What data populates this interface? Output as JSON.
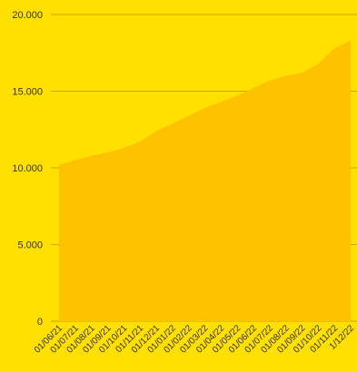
{
  "chart_data": {
    "type": "area",
    "title": "",
    "xlabel": "",
    "ylabel": "",
    "categories": [
      "01/06/21",
      "01/07/21",
      "01/08/21",
      "01/09/21",
      "01/10/21",
      "01/11/21",
      "01/12/21",
      "01/01/22",
      "01/02/22",
      "01/03/22",
      "01/04/22",
      "01/05/22",
      "01/06/22",
      "01/07/22",
      "01/08/22",
      "01/09/22",
      "01/10/22",
      "01/11/22",
      "1/12/22"
    ],
    "values": [
      10200,
      10500,
      10800,
      11000,
      11300,
      11700,
      12400,
      12900,
      13400,
      13900,
      14300,
      14700,
      15200,
      15700,
      16000,
      16200,
      16800,
      17800,
      18300
    ],
    "ylim": [
      0,
      20000
    ],
    "yticks": [
      0,
      5000,
      10000,
      15000,
      20000
    ],
    "ytick_labels": [
      "0",
      "5.000",
      "10.000",
      "15.000",
      "20.000"
    ],
    "grid": true,
    "colors": {
      "background": "#FFE000",
      "area": "#FFC200",
      "grid": "#C9A800"
    }
  }
}
